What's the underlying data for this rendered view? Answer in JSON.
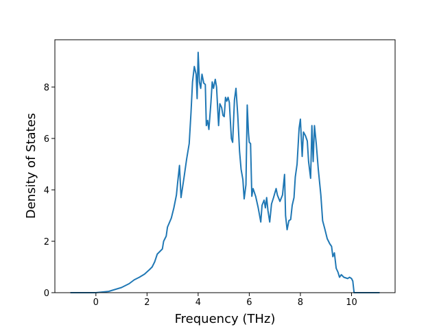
{
  "chart_data": {
    "type": "line",
    "x_label": "Frequency (THz)",
    "y_label": "Density of States",
    "xlim": [
      -1.605,
      11.705
    ],
    "ylim": [
      0,
      9.84
    ],
    "xticks": [
      0,
      2,
      4,
      6,
      8,
      10
    ],
    "yticks": [
      0,
      2,
      4,
      6,
      8
    ],
    "grid": false,
    "series": [
      {
        "color": "#1f77b4",
        "x": [
          -1.0,
          0.0,
          0.5,
          1.0,
          1.3,
          1.5,
          1.7,
          1.9,
          2.1,
          2.2,
          2.3,
          2.4,
          2.5,
          2.6,
          2.65,
          2.75,
          2.8,
          2.95,
          3.05,
          3.15,
          3.2,
          3.27,
          3.33,
          3.45,
          3.55,
          3.65,
          3.72,
          3.78,
          3.85,
          3.92,
          3.96,
          4.0,
          4.05,
          4.1,
          4.15,
          4.22,
          4.28,
          4.32,
          4.37,
          4.42,
          4.5,
          4.55,
          4.6,
          4.67,
          4.72,
          4.8,
          4.85,
          4.92,
          4.97,
          5.02,
          5.07,
          5.12,
          5.17,
          5.22,
          5.3,
          5.35,
          5.42,
          5.48,
          5.55,
          5.62,
          5.68,
          5.75,
          5.8,
          5.87,
          5.92,
          5.97,
          6.0,
          6.05,
          6.1,
          6.15,
          6.25,
          6.35,
          6.45,
          6.5,
          6.58,
          6.63,
          6.68,
          6.73,
          6.8,
          6.87,
          6.95,
          7.05,
          7.1,
          7.2,
          7.3,
          7.38,
          7.42,
          7.48,
          7.55,
          7.62,
          7.68,
          7.75,
          7.8,
          7.87,
          7.95,
          8.0,
          8.07,
          8.12,
          8.2,
          8.27,
          8.32,
          8.4,
          8.45,
          8.5,
          8.55,
          8.62,
          8.7,
          8.8,
          8.87,
          8.95,
          9.05,
          9.15,
          9.22,
          9.27,
          9.33,
          9.4,
          9.47,
          9.53,
          9.6,
          9.7,
          9.85,
          9.92,
          10.0,
          10.05,
          10.1,
          11.1
        ],
        "values": [
          0,
          0,
          0.05,
          0.2,
          0.35,
          0.5,
          0.6,
          0.72,
          0.9,
          1.0,
          1.2,
          1.5,
          1.6,
          1.7,
          2.0,
          2.2,
          2.55,
          2.9,
          3.3,
          3.8,
          4.3,
          4.95,
          3.7,
          4.5,
          5.2,
          5.8,
          7.0,
          8.2,
          8.8,
          8.5,
          7.55,
          9.35,
          8.2,
          7.95,
          8.5,
          8.15,
          8.1,
          6.5,
          6.7,
          6.35,
          7.4,
          8.2,
          7.95,
          8.3,
          8.0,
          6.5,
          7.35,
          7.2,
          6.9,
          6.85,
          7.6,
          7.45,
          7.6,
          7.4,
          6.0,
          5.85,
          7.5,
          7.95,
          6.9,
          5.5,
          4.8,
          4.4,
          3.65,
          4.2,
          7.3,
          6.2,
          5.85,
          5.8,
          3.75,
          4.05,
          3.75,
          3.3,
          2.75,
          3.4,
          3.6,
          3.3,
          3.7,
          3.2,
          2.75,
          3.45,
          3.7,
          4.05,
          3.8,
          3.55,
          3.8,
          4.6,
          3.0,
          2.45,
          2.8,
          2.85,
          3.4,
          3.7,
          4.5,
          5.0,
          6.4,
          6.75,
          5.3,
          6.25,
          6.1,
          5.9,
          5.1,
          4.45,
          6.5,
          5.1,
          6.5,
          5.8,
          4.8,
          3.8,
          2.8,
          2.5,
          2.1,
          1.9,
          1.8,
          1.4,
          1.55,
          0.95,
          0.8,
          0.6,
          0.7,
          0.6,
          0.55,
          0.6,
          0.55,
          0.45,
          0,
          0
        ]
      }
    ]
  }
}
